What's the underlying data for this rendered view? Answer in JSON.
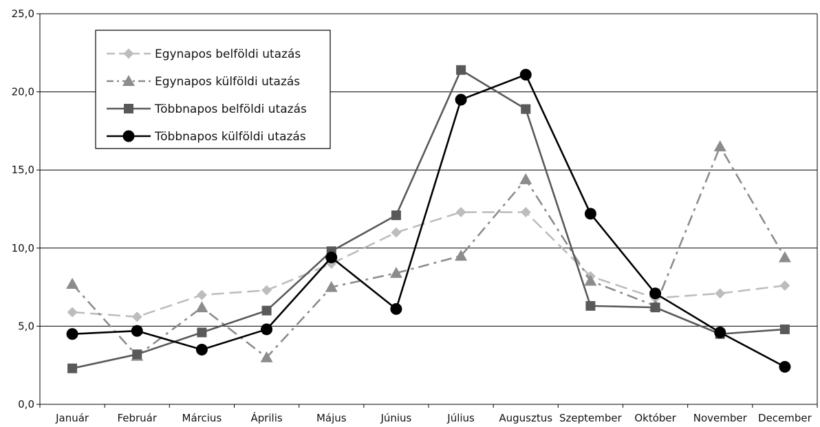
{
  "chart_data": {
    "type": "line",
    "title": "",
    "xlabel": "",
    "ylabel": "",
    "ylim": [
      0,
      25
    ],
    "yticks": [
      "0,0",
      "5,0",
      "10,0",
      "15,0",
      "20,0",
      "25,0"
    ],
    "grid": "horizontal",
    "legend_position": "top-left",
    "categories": [
      "Január",
      "Február",
      "Március",
      "Április",
      "Május",
      "Június",
      "Július",
      "Augusztus",
      "Szeptember",
      "Október",
      "November",
      "December"
    ],
    "series": [
      {
        "name": "Egynapos belföldi utazás",
        "marker": "diamond",
        "line_style": "long-dash",
        "color": "#bdbdbd",
        "values": [
          5.9,
          5.6,
          7.0,
          7.3,
          9.0,
          11.0,
          12.3,
          12.3,
          8.2,
          6.8,
          7.1,
          7.6
        ]
      },
      {
        "name": "Egynapos külföldi utazás",
        "marker": "triangle",
        "line_style": "dash-dot",
        "color": "#8c8c8c",
        "values": [
          7.7,
          3.1,
          6.2,
          3.0,
          7.5,
          8.4,
          9.5,
          14.4,
          7.9,
          6.3,
          16.5,
          9.4
        ]
      },
      {
        "name": "Többnapos belföldi utazás",
        "marker": "square",
        "line_style": "solid",
        "color": "#595959",
        "values": [
          2.3,
          3.2,
          4.6,
          6.0,
          9.8,
          12.1,
          21.4,
          18.9,
          6.3,
          6.2,
          4.5,
          4.8
        ]
      },
      {
        "name": "Többnapos külföldi utazás",
        "marker": "circle",
        "line_style": "solid",
        "color": "#000000",
        "values": [
          4.5,
          4.7,
          3.5,
          4.8,
          9.4,
          6.1,
          19.5,
          21.1,
          12.2,
          7.1,
          4.6,
          2.4
        ]
      }
    ]
  }
}
